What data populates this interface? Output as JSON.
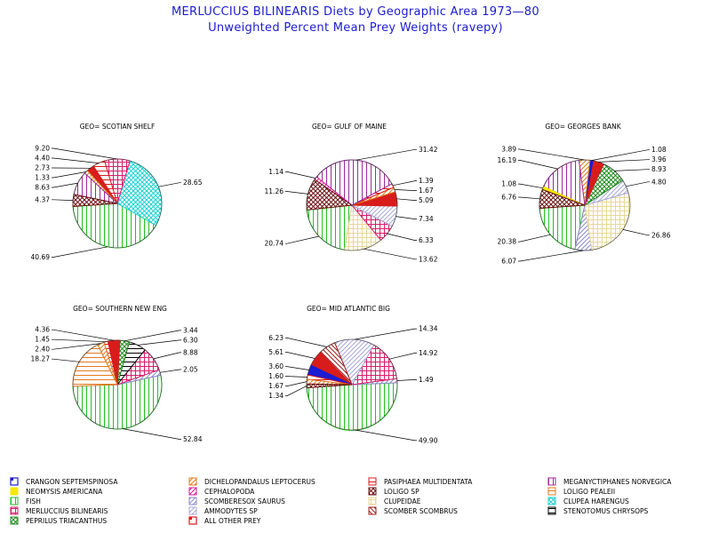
{
  "title": "MERLUCCIUS BILINEARIS Diets by Geographic Area 1973—80",
  "subtitle": "Unweighted Percent Mean Prey Weights (ravepy)",
  "legend": [
    {
      "name": "CRANGON SEPTEMSPINOSA",
      "color": "#1c1cd2",
      "pattern": "solid-corner"
    },
    {
      "name": "DICHELOPANDALUS LEPTOCERUS",
      "color": "#e07a1f",
      "pattern": "diag-left"
    },
    {
      "name": "PASIPHAEA MULTIDENTATA",
      "color": "#d81c1c",
      "pattern": "hlines"
    },
    {
      "name": "MEGANYCTIPHANES NORVEGICA",
      "color": "#9a2a9a",
      "pattern": "vlines"
    },
    {
      "name": "NEOMYSIS AMERICANA",
      "color": "#f5e800",
      "pattern": "solid"
    },
    {
      "name": "CEPHALOPODA",
      "color": "#d81c9a",
      "pattern": "diag-left"
    },
    {
      "name": "LOLIGO SP",
      "color": "#6a1010",
      "pattern": "crosshatch"
    },
    {
      "name": "LOLIGO PEALEII",
      "color": "#e07a1f",
      "pattern": "hlines"
    },
    {
      "name": "FISH",
      "color": "#22c022",
      "pattern": "vlines"
    },
    {
      "name": "SCOMBERESOX SAURUS",
      "color": "#8a8ac8",
      "pattern": "diag-left"
    },
    {
      "name": "CLUPEIDAE",
      "color": "#e8d79a",
      "pattern": "grid"
    },
    {
      "name": "CLUPEA HARENGUS",
      "color": "#1cd2d2",
      "pattern": "crosshatch"
    },
    {
      "name": "MERLUCCIUS BILINEARIS",
      "color": "#d81c6a",
      "pattern": "grid"
    },
    {
      "name": "AMMODYTES SP",
      "color": "#a8a8d8",
      "pattern": "diag-left"
    },
    {
      "name": "SCOMBER SCOMBRUS",
      "color": "#a01c1c",
      "pattern": "diag-right"
    },
    {
      "name": "STENOTOMUS CHRYSOPS",
      "color": "#000000",
      "pattern": "hlines"
    },
    {
      "name": "PEPRILUS TRIACANTHUS",
      "color": "#1c8a1c",
      "pattern": "crosshatch"
    },
    {
      "name": "ALL OTHER PREY",
      "color": "#d81c1c",
      "pattern": "solid-corner"
    }
  ],
  "chart_data": [
    {
      "type": "pie",
      "title": "GEO= SCOTIAN SHELF",
      "slices": [
        {
          "prey": "FISH",
          "value": 40.69
        },
        {
          "prey": "CLUPEA HARENGUS",
          "value": 28.65
        },
        {
          "prey": "MERLUCCIUS BILINEARIS",
          "value": 9.2
        },
        {
          "prey": "PASIPHAEA MULTIDENTATA",
          "value": 4.4
        },
        {
          "prey": "ALL OTHER PREY",
          "value": 2.73
        },
        {
          "prey": "DICHELOPANDALUS LEPTOCERUS",
          "value": 1.33
        },
        {
          "prey": "MEGANYCTIPHANES NORVEGICA",
          "value": 8.63
        },
        {
          "prey": "LOLIGO SP",
          "value": 4.37
        }
      ]
    },
    {
      "type": "pie",
      "title": "GEO= GULF OF MAINE",
      "slices": [
        {
          "prey": "FISH",
          "value": 20.74
        },
        {
          "prey": "CLUPEIDAE",
          "value": 13.62
        },
        {
          "prey": "MERLUCCIUS BILINEARIS",
          "value": 6.33
        },
        {
          "prey": "AMMODYTES SP",
          "value": 7.34
        },
        {
          "prey": "ALL OTHER PREY",
          "value": 5.09
        },
        {
          "prey": "DICHELOPANDALUS LEPTOCERUS",
          "value": 1.67
        },
        {
          "prey": "PASIPHAEA MULTIDENTATA",
          "value": 1.39
        },
        {
          "prey": "MEGANYCTIPHANES NORVEGICA",
          "value": 31.42
        },
        {
          "prey": "CEPHALOPODA",
          "value": 1.14
        },
        {
          "prey": "LOLIGO SP",
          "value": 11.26
        }
      ]
    },
    {
      "type": "pie",
      "title": "GEO= GEORGES BANK",
      "slices": [
        {
          "prey": "FISH",
          "value": 20.38
        },
        {
          "prey": "SCOMBERESOX SAURUS",
          "value": 6.07
        },
        {
          "prey": "CLUPEIDAE",
          "value": 26.86
        },
        {
          "prey": "AMMODYTES SP",
          "value": 4.8
        },
        {
          "prey": "PEPRILUS TRIACANTHUS",
          "value": 8.93
        },
        {
          "prey": "ALL OTHER PREY",
          "value": 3.96
        },
        {
          "prey": "CRANGON SEPTEMSPINOSA",
          "value": 1.08
        },
        {
          "prey": "DICHELOPANDALUS LEPTOCERUS",
          "value": 3.89
        },
        {
          "prey": "MEGANYCTIPHANES NORVEGICA",
          "value": 16.19
        },
        {
          "prey": "NEOMYSIS AMERICANA",
          "value": 1.08
        },
        {
          "prey": "LOLIGO SP",
          "value": 6.76
        }
      ]
    },
    {
      "type": "pie",
      "title": "GEO= SOUTHERN NEW ENG",
      "slices": [
        {
          "prey": "FISH",
          "value": 52.84
        },
        {
          "prey": "SCOMBERESOX SAURUS",
          "value": 2.05
        },
        {
          "prey": "MERLUCCIUS BILINEARIS",
          "value": 8.88
        },
        {
          "prey": "STENOTOMUS CHRYSOPS",
          "value": 6.3
        },
        {
          "prey": "PEPRILUS TRIACANTHUS",
          "value": 3.44
        },
        {
          "prey": "ALL OTHER PREY",
          "value": 4.36
        },
        {
          "prey": "PASIPHAEA MULTIDENTATA",
          "value": 1.45
        },
        {
          "prey": "DICHELOPANDALUS LEPTOCERUS",
          "value": 2.4
        },
        {
          "prey": "LOLIGO PEALEII",
          "value": 18.27
        }
      ]
    },
    {
      "type": "pie",
      "title": "GEO= MID ATLANTIC BIG",
      "slices": [
        {
          "prey": "FISH",
          "value": 49.9
        },
        {
          "prey": "SCOMBERESOX SAURUS",
          "value": 1.49
        },
        {
          "prey": "MERLUCCIUS BILINEARIS",
          "value": 14.92
        },
        {
          "prey": "AMMODYTES SP",
          "value": 14.34
        },
        {
          "prey": "SCOMBER SCOMBRUS",
          "value": 6.23
        },
        {
          "prey": "ALL OTHER PREY",
          "value": 5.61
        },
        {
          "prey": "CRANGON SEPTEMSPINOSA",
          "value": 3.6
        },
        {
          "prey": "PASIPHAEA MULTIDENTATA",
          "value": 1.6
        },
        {
          "prey": "DICHELOPANDALUS LEPTOCERUS",
          "value": 1.67
        },
        {
          "prey": "LOLIGO SP",
          "value": 1.34
        }
      ]
    }
  ]
}
